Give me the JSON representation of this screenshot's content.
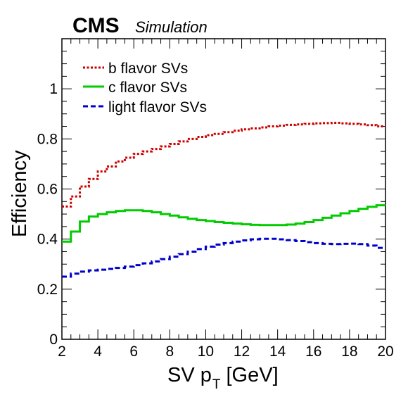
{
  "header": {
    "experiment": "CMS",
    "tag": "Simulation"
  },
  "chart_data": {
    "type": "line",
    "style": "step-histogram",
    "xlabel": "SV p",
    "xlabel_subscript": "T",
    "xlabel_unit": "[GeV]",
    "ylabel": "Efficiency",
    "xlim": [
      2,
      20
    ],
    "ylim": [
      0,
      1.2
    ],
    "x_ticks": [
      2,
      4,
      6,
      8,
      10,
      12,
      14,
      16,
      18,
      20
    ],
    "y_ticks": [
      0,
      0.2,
      0.4,
      0.6,
      0.8,
      1
    ],
    "y_tick_labels": [
      "0",
      "0.2",
      "0.4",
      "0.6",
      "0.8",
      "1"
    ],
    "grid": false,
    "legend_position": "top-left",
    "x": [
      2,
      2.5,
      3,
      3.5,
      4,
      4.5,
      5,
      5.5,
      6,
      6.5,
      7,
      7.5,
      8,
      8.5,
      9,
      9.5,
      10,
      10.5,
      11,
      11.5,
      12,
      12.5,
      13,
      13.5,
      14,
      14.5,
      15,
      15.5,
      16,
      16.5,
      17,
      17.5,
      18,
      18.5,
      19,
      19.5,
      20
    ],
    "series": [
      {
        "name": "b flavor SVs",
        "color": "#cc0000",
        "dash": "dotted",
        "values": [
          0.53,
          0.57,
          0.61,
          0.64,
          0.67,
          0.69,
          0.71,
          0.725,
          0.74,
          0.75,
          0.76,
          0.77,
          0.78,
          0.79,
          0.8,
          0.808,
          0.815,
          0.82,
          0.827,
          0.833,
          0.838,
          0.842,
          0.846,
          0.85,
          0.853,
          0.856,
          0.858,
          0.86,
          0.862,
          0.863,
          0.864,
          0.862,
          0.86,
          0.858,
          0.855,
          0.85,
          0.848
        ]
      },
      {
        "name": "c flavor SVs",
        "color": "#00cc00",
        "dash": "solid",
        "values": [
          0.39,
          0.43,
          0.47,
          0.49,
          0.5,
          0.507,
          0.512,
          0.515,
          0.515,
          0.512,
          0.507,
          0.5,
          0.494,
          0.487,
          0.481,
          0.476,
          0.472,
          0.468,
          0.465,
          0.462,
          0.459,
          0.457,
          0.456,
          0.456,
          0.456,
          0.458,
          0.462,
          0.468,
          0.476,
          0.485,
          0.494,
          0.503,
          0.512,
          0.521,
          0.529,
          0.535,
          0.538
        ]
      },
      {
        "name": "light flavor SVs",
        "color": "#0000cc",
        "dash": "dashed",
        "values": [
          0.25,
          0.262,
          0.27,
          0.275,
          0.278,
          0.281,
          0.285,
          0.29,
          0.296,
          0.303,
          0.311,
          0.32,
          0.33,
          0.34,
          0.35,
          0.36,
          0.37,
          0.378,
          0.384,
          0.39,
          0.395,
          0.399,
          0.401,
          0.401,
          0.399,
          0.396,
          0.392,
          0.388,
          0.384,
          0.381,
          0.38,
          0.381,
          0.382,
          0.38,
          0.374,
          0.365,
          0.355
        ]
      }
    ]
  }
}
